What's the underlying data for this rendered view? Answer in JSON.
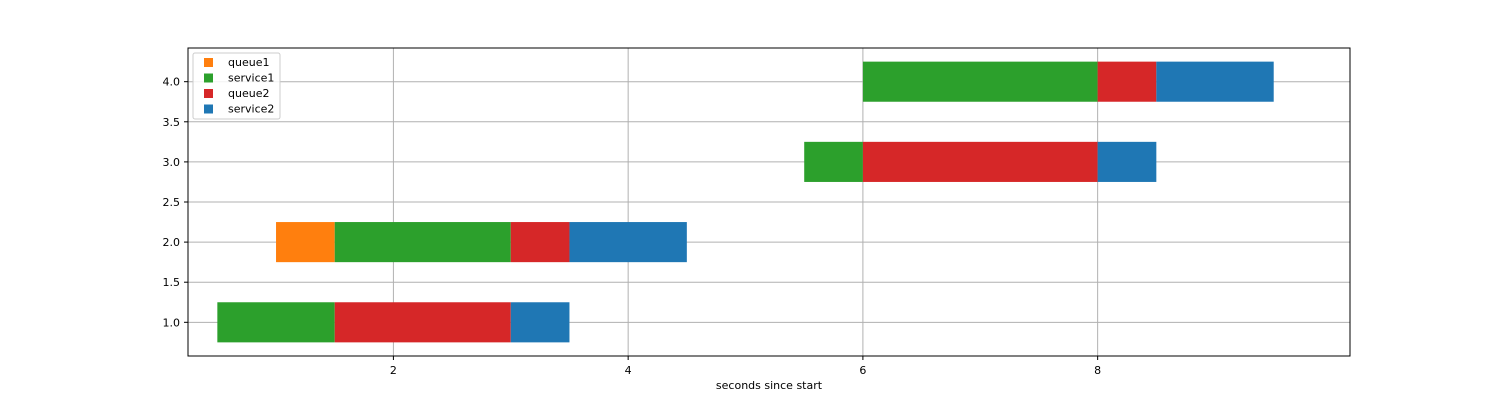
{
  "chart_data": {
    "type": "bar",
    "orientation": "horizontal-stacked",
    "xlabel": "seconds since start",
    "ylabel": "",
    "xlim": [
      0.25,
      10.15
    ],
    "ylim": [
      0.58,
      4.42
    ],
    "xticks": [
      2,
      4,
      6,
      8
    ],
    "yticks": [
      1.0,
      1.5,
      2.0,
      2.5,
      3.0,
      3.5,
      4.0
    ],
    "grid": true,
    "legend_position": "top-left",
    "bar_height": 0.5,
    "series": [
      {
        "name": "queue1",
        "color": "#ff7f0e"
      },
      {
        "name": "service1",
        "color": "#2ca02c"
      },
      {
        "name": "queue2",
        "color": "#d62728"
      },
      {
        "name": "service2",
        "color": "#1f77b4"
      }
    ],
    "segments": [
      {
        "y": 1.0,
        "series": "service1",
        "start": 0.5,
        "end": 1.5
      },
      {
        "y": 1.0,
        "series": "queue2",
        "start": 1.5,
        "end": 3.0
      },
      {
        "y": 1.0,
        "series": "service2",
        "start": 3.0,
        "end": 3.5
      },
      {
        "y": 2.0,
        "series": "queue1",
        "start": 1.0,
        "end": 1.5
      },
      {
        "y": 2.0,
        "series": "service1",
        "start": 1.5,
        "end": 3.0
      },
      {
        "y": 2.0,
        "series": "queue2",
        "start": 3.0,
        "end": 3.5
      },
      {
        "y": 2.0,
        "series": "service2",
        "start": 3.5,
        "end": 4.5
      },
      {
        "y": 3.0,
        "series": "service1",
        "start": 5.5,
        "end": 6.0
      },
      {
        "y": 3.0,
        "series": "queue2",
        "start": 6.0,
        "end": 8.0
      },
      {
        "y": 3.0,
        "series": "service2",
        "start": 8.0,
        "end": 8.5
      },
      {
        "y": 4.0,
        "series": "service1",
        "start": 6.0,
        "end": 8.0
      },
      {
        "y": 4.0,
        "series": "queue2",
        "start": 8.0,
        "end": 8.5
      },
      {
        "y": 4.0,
        "series": "service2",
        "start": 8.5,
        "end": 9.5
      }
    ]
  }
}
